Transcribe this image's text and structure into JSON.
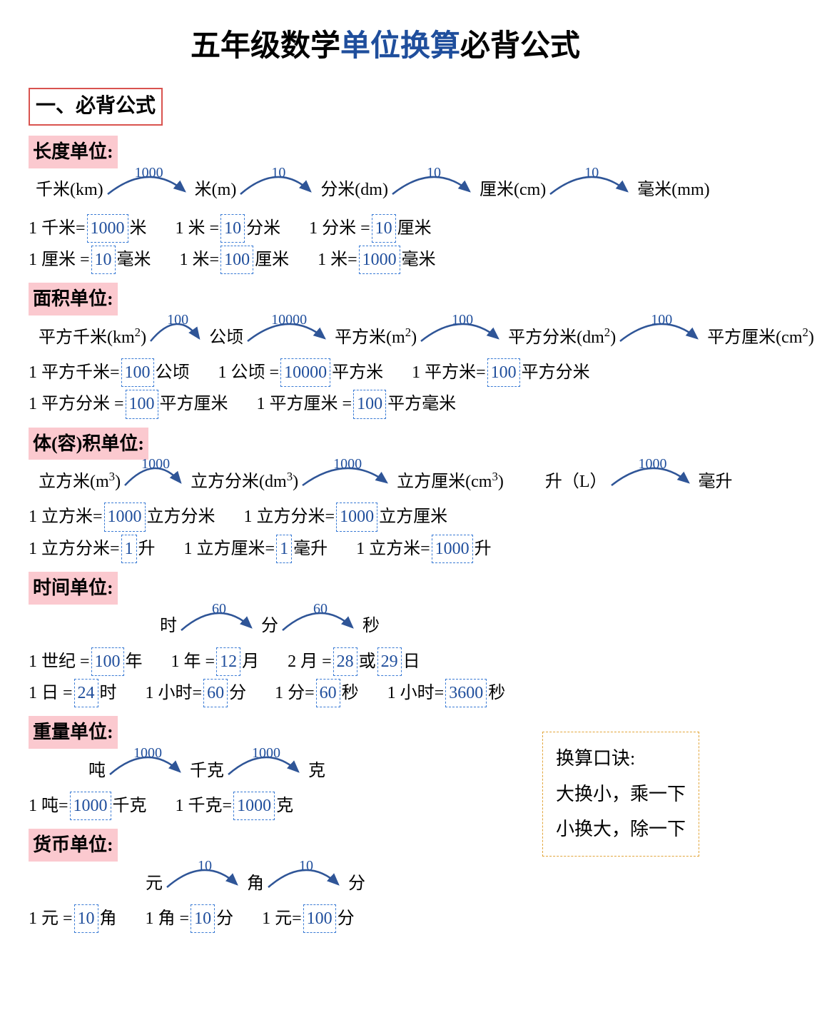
{
  "title_pre": "五年级数学",
  "title_hl": "单位换算",
  "title_post": "必背公式",
  "section1": "一、必背公式",
  "colors": {
    "accent": "#1f4e9c",
    "arc_stroke": "#2f5597",
    "dashed_border": "#3a7bd5",
    "cat_bg": "#fbc9cf",
    "header_border": "#d9534f",
    "mnemonic_border": "#e2a53a"
  },
  "length": {
    "label": "长度单位:",
    "chain": {
      "units": [
        "千米(km)",
        "米(m)",
        "分米(dm)",
        "厘米(cm)",
        "毫米(mm)"
      ],
      "factors": [
        "1000",
        "10",
        "10",
        "10"
      ],
      "arc_widths": [
        120,
        110,
        120,
        120
      ]
    },
    "eqs": [
      [
        {
          "l": "1 千米=",
          "n": "1000",
          "r": "米"
        },
        {
          "l": "1 米 =",
          "n": "10",
          "r": "分米"
        },
        {
          "l": "1 分米 =",
          "n": "10",
          "r": "厘米"
        }
      ],
      [
        {
          "l": "1 厘米 =",
          "n": "10",
          "r": "毫米"
        },
        {
          "l": "1 米=",
          "n": "100",
          "r": "厘米"
        },
        {
          "l": "1 米=",
          "n": "1000",
          "r": "毫米"
        }
      ]
    ]
  },
  "area": {
    "label": "面积单位:",
    "chain": {
      "units_html": [
        "平方千米(km<sup>2</sup>)",
        "公顷",
        "平方米(m<sup>2</sup>)",
        "平方分米(dm<sup>2</sup>)",
        "平方厘米(cm<sup>2</sup>)"
      ],
      "factors": [
        "100",
        "10000",
        "100",
        "100"
      ],
      "arc_widths": [
        80,
        120,
        120,
        120
      ]
    },
    "eqs": [
      [
        {
          "l": "1 平方千米=",
          "n": "100",
          "r": "公顷"
        },
        {
          "l": "1 公顷 =",
          "n": "10000",
          "r": "平方米"
        },
        {
          "l": "1 平方米=",
          "n": "100",
          "r": "平方分米"
        }
      ],
      [
        {
          "l": "1 平方分米 =",
          "n": "100",
          "r": "平方厘米"
        },
        {
          "l": "1 平方厘米 =",
          "n": "100",
          "r": "平方毫米"
        }
      ]
    ]
  },
  "volume": {
    "label": "体(容)积单位:",
    "chain": {
      "units_html": [
        "立方米(m<sup>3</sup>)",
        "立方分米(dm<sup>3</sup>)",
        "立方厘米(cm<sup>3</sup>)",
        "升（L）",
        "毫升"
      ],
      "factors": [
        "1000",
        "1000",
        "",
        "1000"
      ],
      "arc_widths": [
        90,
        130,
        0,
        120
      ]
    },
    "eqs": [
      [
        {
          "l": "1 立方米=",
          "n": "1000",
          "r": "立方分米"
        },
        {
          "l": "1 立方分米=",
          "n": "1000",
          "r": "立方厘米"
        }
      ],
      [
        {
          "l": "1 立方分米=",
          "n": "1",
          "r": "升"
        },
        {
          "l": "1 立方厘米=",
          "n": "1",
          "r": "毫升"
        },
        {
          "l": "1 立方米=",
          "n": "1000",
          "r": "升"
        }
      ]
    ]
  },
  "time": {
    "label": "时间单位:",
    "chain": {
      "units": [
        "时",
        "分",
        "秒"
      ],
      "factors": [
        "60",
        "60"
      ],
      "arc_widths": [
        110,
        110
      ]
    },
    "eqs": [
      [
        {
          "l": "1 世纪 =",
          "n": "100",
          "r": "年"
        },
        {
          "l": "1 年 =",
          "n": "12",
          "r": "月"
        },
        {
          "l": "2 月 =",
          "n": "28",
          "r": "或",
          "n2": "29",
          "r2": "日"
        }
      ],
      [
        {
          "l": "1 日 =",
          "n": "24",
          "r": "时"
        },
        {
          "l": "1 小时=",
          "n": "60",
          "r": "分"
        },
        {
          "l": "1 分=",
          "n": "60",
          "r": "秒"
        },
        {
          "l": "1 小时=",
          "n": "3600",
          "r": "秒"
        }
      ]
    ]
  },
  "weight": {
    "label": "重量单位:",
    "chain": {
      "units": [
        "吨",
        "千克",
        "克"
      ],
      "factors": [
        "1000",
        "1000"
      ],
      "arc_widths": [
        110,
        110
      ]
    },
    "eqs": [
      [
        {
          "l": "1 吨=",
          "n": "1000",
          "r": "千克"
        },
        {
          "l": "1 千克=",
          "n": "1000",
          "r": "克"
        }
      ]
    ]
  },
  "money": {
    "label": "货币单位:",
    "chain": {
      "units": [
        "元",
        "角",
        "分"
      ],
      "factors": [
        "10",
        "10"
      ],
      "arc_widths": [
        110,
        110
      ]
    },
    "eqs": [
      [
        {
          "l": "1 元 =",
          "n": "10",
          "r": "角"
        },
        {
          "l": "1 角 =",
          "n": "10",
          "r": "分"
        },
        {
          "l": "1 元=",
          "n": "100",
          "r": "分"
        }
      ]
    ]
  },
  "mnemonic": {
    "title": "换算口诀:",
    "line1": "大换小，乘一下",
    "line2": "小换大，除一下"
  }
}
